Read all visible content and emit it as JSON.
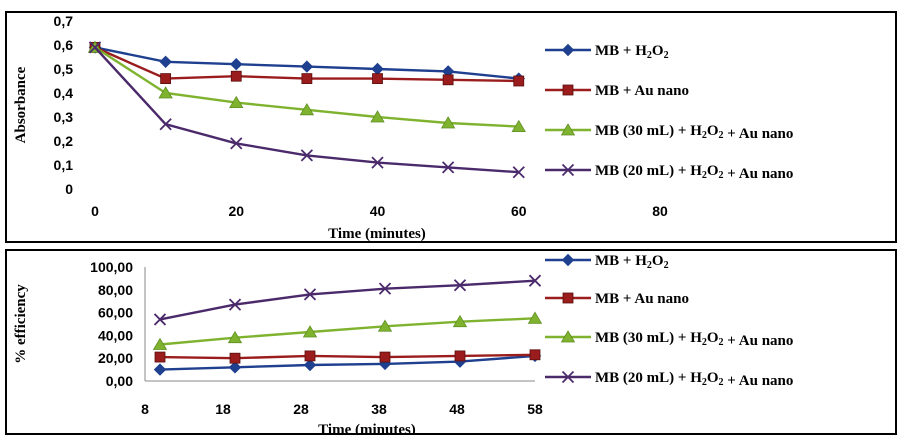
{
  "chart_data": [
    {
      "type": "line",
      "xlabel": "Time (minutes)",
      "ylabel": "Absorbance",
      "xlim": [
        0,
        80
      ],
      "ylim": [
        0,
        0.7
      ],
      "xticks": [
        "0",
        "20",
        "40",
        "60",
        "80"
      ],
      "yticks": [
        "0",
        "0,1",
        "0,2",
        "0,3",
        "0,4",
        "0,5",
        "0,6",
        "0,7"
      ],
      "grid": false,
      "legend_position": "right",
      "x": [
        0,
        10,
        20,
        30,
        40,
        50,
        60
      ],
      "series": [
        {
          "name": "MB + H2O2",
          "color": "#1f3f8f",
          "marker": "diamond",
          "values": [
            0.59,
            0.53,
            0.52,
            0.51,
            0.5,
            0.49,
            0.46
          ]
        },
        {
          "name": "MB + Au nano",
          "color": "#9b1c1c",
          "marker": "square",
          "values": [
            0.59,
            0.46,
            0.47,
            0.46,
            0.46,
            0.455,
            0.45
          ]
        },
        {
          "name": "MB (30 mL) + H2O2 + Au nano",
          "color": "#7fb32f",
          "marker": "triangle",
          "values": [
            0.59,
            0.4,
            0.36,
            0.33,
            0.3,
            0.275,
            0.26
          ]
        },
        {
          "name": "MB (20 mL) + H2O2 + Au nano",
          "color": "#4b2a6b",
          "marker": "x",
          "values": [
            0.59,
            0.27,
            0.19,
            0.14,
            0.11,
            0.09,
            0.07
          ]
        }
      ]
    },
    {
      "type": "line",
      "xlabel": "Time (minutes)",
      "ylabel": "% efficiency",
      "xlim": [
        8,
        60
      ],
      "ylim": [
        0,
        100
      ],
      "xticks": [
        "8",
        "18",
        "28",
        "38",
        "48",
        "58"
      ],
      "yticks": [
        "0,00",
        "20,00",
        "40,00",
        "60,00",
        "80,00",
        "100,00"
      ],
      "grid": false,
      "legend_position": "right",
      "x": [
        10,
        20,
        30,
        40,
        50,
        60
      ],
      "series": [
        {
          "name": "MB + H2O2",
          "color": "#1f3f8f",
          "marker": "diamond",
          "values": [
            10,
            12,
            14,
            15,
            17,
            22
          ]
        },
        {
          "name": "MB + Au nano",
          "color": "#9b1c1c",
          "marker": "square",
          "values": [
            21,
            20,
            22,
            21,
            22,
            23
          ]
        },
        {
          "name": "MB (30 mL) + H2O2 + Au nano",
          "color": "#7fb32f",
          "marker": "triangle",
          "values": [
            32,
            38,
            43,
            48,
            52,
            55
          ]
        },
        {
          "name": "MB (20 mL) + H2O2 + Au nano",
          "color": "#4b2a6b",
          "marker": "x",
          "values": [
            54,
            67,
            76,
            81,
            84,
            88
          ]
        }
      ]
    }
  ]
}
